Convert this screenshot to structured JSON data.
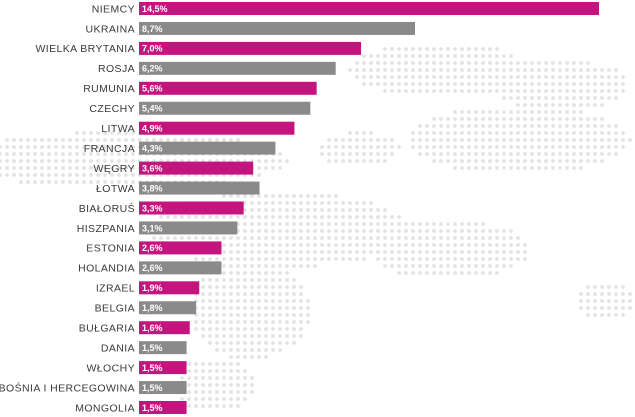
{
  "chart_data": {
    "type": "bar",
    "orientation": "horizontal",
    "categories": [
      "NIEMCY",
      "UKRAINA",
      "WIELKA BRYTANIA",
      "ROSJA",
      "RUMUNIA",
      "CZECHY",
      "LITWA",
      "FRANCJA",
      "WĘGRY",
      "ŁOTWA",
      "BIAŁORUŚ",
      "HISZPANIA",
      "ESTONIA",
      "HOLANDIA",
      "IZRAEL",
      "BELGIA",
      "BUŁGARIA",
      "DANIA",
      "WŁOCHY",
      "BOŚNIA I HERCEGOWINA",
      "MONGOLIA"
    ],
    "values": [
      14.5,
      8.7,
      7.0,
      6.2,
      5.6,
      5.4,
      4.9,
      4.3,
      3.6,
      3.8,
      3.3,
      3.1,
      2.6,
      2.6,
      1.9,
      1.8,
      1.6,
      1.5,
      1.5,
      1.5,
      1.5
    ],
    "value_labels": [
      "14,5%",
      "8,7%",
      "7,0%",
      "6,2%",
      "5,6%",
      "5,4%",
      "4,9%",
      "4,3%",
      "3,6%",
      "3,8%",
      "3,3%",
      "3,1%",
      "2,6%",
      "2,6%",
      "1,9%",
      "1,8%",
      "1,6%",
      "1,5%",
      "1,5%",
      "1,5%",
      "1,5%"
    ],
    "bar_colors": [
      "#c4157f",
      "#8a8a8a",
      "#c4157f",
      "#8a8a8a",
      "#c4157f",
      "#8a8a8a",
      "#c4157f",
      "#8a8a8a",
      "#c4157f",
      "#8a8a8a",
      "#c4157f",
      "#8a8a8a",
      "#c4157f",
      "#8a8a8a",
      "#c4157f",
      "#8a8a8a",
      "#c4157f",
      "#8a8a8a",
      "#c4157f",
      "#8a8a8a",
      "#c4157f"
    ],
    "xlim": [
      0,
      14.5
    ],
    "title": "",
    "xlabel": "",
    "ylabel": "",
    "grid": false,
    "legend": "none"
  },
  "colors": {
    "accent": "#c4157f",
    "neutral": "#8a8a8a",
    "map_dots": "#e3e3e3"
  }
}
